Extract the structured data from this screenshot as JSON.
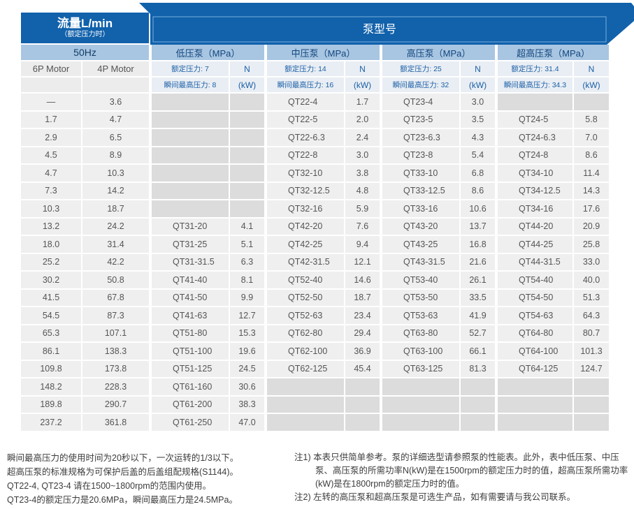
{
  "table": {
    "flow": {
      "title": "流量L/min",
      "subtitle": "（额定压力时）",
      "frequency": "50Hz",
      "motors": [
        "6P Motor",
        "4P Motor"
      ]
    },
    "pump_model_label": "泵型号",
    "sections": [
      {
        "label": "低压泵（MPa）",
        "rated": "额定压力: 7",
        "peak": "瞬间最高压力: 8",
        "n": "N",
        "kw": "(kW)"
      },
      {
        "label": "中压泵（MPa）",
        "rated": "额定压力: 14",
        "peak": "瞬间最高压力: 16",
        "n": "N",
        "kw": "(kW)"
      },
      {
        "label": "高压泵（MPa）",
        "rated": "额定压力: 25",
        "peak": "瞬间最高压力: 32",
        "n": "N",
        "kw": "(kW)"
      },
      {
        "label": "超高压泵（MPa）",
        "rated": "额定压力: 31.4",
        "peak": "瞬间最高压力: 34.3",
        "n": "N",
        "kw": "(kW)"
      }
    ],
    "rows": [
      [
        "—",
        "3.6",
        null,
        null,
        "QT22-4",
        "1.7",
        "QT23-4",
        "3.0",
        null,
        null
      ],
      [
        "1.7",
        "4.7",
        null,
        null,
        "QT22-5",
        "2.0",
        "QT23-5",
        "3.5",
        "QT24-5",
        "5.8"
      ],
      [
        "2.9",
        "6.5",
        null,
        null,
        "QT22-6.3",
        "2.4",
        "QT23-6.3",
        "4.3",
        "QT24-6.3",
        "7.0"
      ],
      [
        "4.5",
        "8.9",
        null,
        null,
        "QT22-8",
        "3.0",
        "QT23-8",
        "5.4",
        "QT24-8",
        "8.6"
      ],
      [
        "4.7",
        "10.3",
        null,
        null,
        "QT32-10",
        "3.8",
        "QT33-10",
        "6.8",
        "QT34-10",
        "11.4"
      ],
      [
        "7.3",
        "14.2",
        null,
        null,
        "QT32-12.5",
        "4.8",
        "QT33-12.5",
        "8.6",
        "QT34-12.5",
        "14.3"
      ],
      [
        "10.3",
        "18.7",
        null,
        null,
        "QT32-16",
        "5.9",
        "QT33-16",
        "10.6",
        "QT34-16",
        "17.6"
      ],
      [
        "13.2",
        "24.2",
        "QT31-20",
        "4.1",
        "QT42-20",
        "7.6",
        "QT43-20",
        "13.7",
        "QT44-20",
        "20.9"
      ],
      [
        "18.0",
        "31.4",
        "QT31-25",
        "5.1",
        "QT42-25",
        "9.4",
        "QT43-25",
        "16.8",
        "QT44-25",
        "25.8"
      ],
      [
        "25.2",
        "42.2",
        "QT31-31.5",
        "6.3",
        "QT42-31.5",
        "12.1",
        "QT43-31.5",
        "21.6",
        "QT44-31.5",
        "33.0"
      ],
      [
        "30.2",
        "50.8",
        "QT41-40",
        "8.1",
        "QT52-40",
        "14.6",
        "QT53-40",
        "26.1",
        "QT54-40",
        "40.0"
      ],
      [
        "41.5",
        "67.8",
        "QT41-50",
        "9.9",
        "QT52-50",
        "18.7",
        "QT53-50",
        "33.5",
        "QT54-50",
        "51.3"
      ],
      [
        "54.5",
        "87.3",
        "QT41-63",
        "12.7",
        "QT52-63",
        "23.4",
        "QT53-63",
        "41.9",
        "QT54-63",
        "64.3"
      ],
      [
        "65.3",
        "107.1",
        "QT51-80",
        "15.3",
        "QT62-80",
        "29.4",
        "QT63-80",
        "52.7",
        "QT64-80",
        "80.7"
      ],
      [
        "86.1",
        "138.3",
        "QT51-100",
        "19.6",
        "QT62-100",
        "36.9",
        "QT63-100",
        "66.1",
        "QT64-100",
        "101.3"
      ],
      [
        "109.8",
        "173.8",
        "QT51-125",
        "24.5",
        "QT62-125",
        "45.4",
        "QT63-125",
        "81.3",
        "QT64-125",
        "124.7"
      ],
      [
        "148.2",
        "228.3",
        "QT61-160",
        "30.6",
        null,
        null,
        null,
        null,
        null,
        null
      ],
      [
        "189.8",
        "290.7",
        "QT61-200",
        "38.3",
        null,
        null,
        null,
        null,
        null,
        null
      ],
      [
        "237.2",
        "361.8",
        "QT61-250",
        "47.0",
        null,
        null,
        null,
        null,
        null,
        null
      ]
    ]
  },
  "footnotes": {
    "left": [
      "瞬间最高压力的使用时间为20秒以下，一次运转的1/3以下。",
      "超高压泵的标准规格为可保护后盖的后盖组配规格(S1144)。",
      "QT22-4, QT23-4 请在1500~1800rpm的范围内使用。",
      "QT23-4的额定压力是20.6MPa，瞬间最高压力是24.5MPa。"
    ],
    "right": [
      "注1) 本表只供简单参考。泵的详细选型请参照泵的性能表。此外，表中低压泵、中压泵、高压泵的所需功率N(kW)是在1500rpm的额定压力时的值，超高压泵所需功率(kW)是在1800rpm的额定压力时的值。",
      "注2) 左转的高压泵和超高压泵是可选生产品，如有需要请与我公司联系。"
    ]
  },
  "colors": {
    "header_blue": "#1161ab",
    "subheader_blue": "#a8c6e2",
    "pale_blue": "#e9eef4",
    "cell_gray": "#efefef",
    "empty_gray": "#dcdcdc",
    "ribbon_inner_line": "#79aede"
  }
}
